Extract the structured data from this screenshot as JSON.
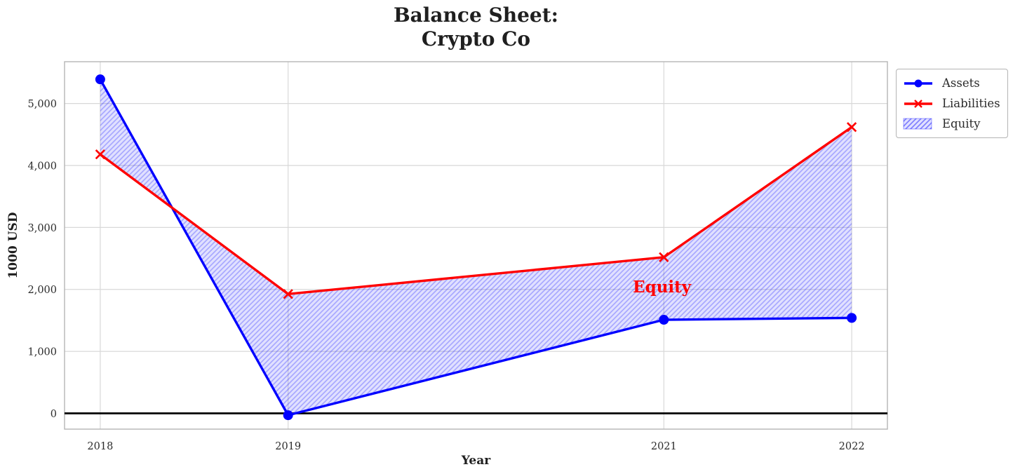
{
  "chart_data": {
    "type": "line",
    "title_lines": [
      "Balance Sheet:",
      "Crypto Co"
    ],
    "xlabel": "Year",
    "ylabel": "1000 USD",
    "x": [
      2018,
      2019,
      2021,
      2022
    ],
    "x_tick_labels": [
      "2018",
      "2019",
      "2021",
      "2022"
    ],
    "y_ticks": [
      0,
      1000,
      2000,
      3000,
      4000,
      5000
    ],
    "y_tick_labels": [
      "0",
      "1,000",
      "2,000",
      "3,000",
      "4,000",
      "5,000"
    ],
    "xlim": [
      2017.81,
      2022.19
    ],
    "ylim": [
      -255,
      5675
    ],
    "grid": true,
    "zero_line_y": 0,
    "series": [
      {
        "name": "Assets",
        "color": "#0000ff",
        "marker": "circle",
        "values": [
          5390,
          -30,
          1510,
          1540
        ]
      },
      {
        "name": "Liabilities",
        "color": "#ff0000",
        "marker": "x",
        "values": [
          4180,
          1925,
          2520,
          4620
        ]
      }
    ],
    "fill_between": {
      "label": "Equity",
      "between": [
        "Assets",
        "Liabilities"
      ],
      "fill_color": "#0000ff",
      "fill_opacity": 0.12,
      "hatch": "///",
      "hatch_color": "#0000ff",
      "hatch_opacity": 0.26
    },
    "annotation": {
      "text": "Equity",
      "x": 2020.99,
      "y": 2040,
      "color": "#ff0000"
    },
    "legend": {
      "position": "upper-right-outside",
      "entries": [
        {
          "label": "Assets",
          "kind": "line-circle",
          "color": "#0000ff"
        },
        {
          "label": "Liabilities",
          "kind": "line-x",
          "color": "#ff0000"
        },
        {
          "label": "Equity",
          "kind": "hatched-patch",
          "color": "#0000ff"
        }
      ]
    },
    "style": {
      "grid_color": "#d8d8d8",
      "spine_color": "#b5b5b5",
      "text_color": "#1f1f1f",
      "tick_color": "#2b2b2b",
      "zero_line_color": "#000000",
      "background": "#ffffff"
    }
  }
}
